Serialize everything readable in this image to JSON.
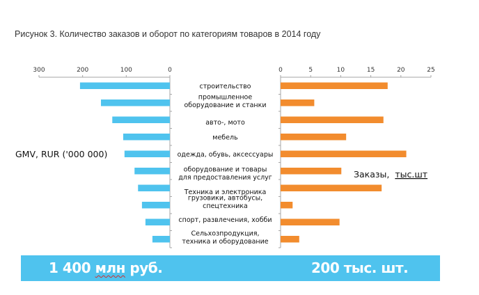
{
  "title": "Рисунок 3. Количество заказов и оборот по категориям товаров в 2014 году",
  "colors": {
    "gmv_bar": "#4FC3EE",
    "orders_bar": "#F28C2E",
    "banner": "#4FC3EE",
    "axis": "#A6A6A6"
  },
  "chart_data": [
    {
      "type": "bar",
      "orientation": "horizontal",
      "direction": "right-to-left",
      "series": [
        {
          "name": "GMV, RUR ('000 000)",
          "values": [
            206,
            158,
            132,
            107,
            104,
            81,
            73,
            64,
            56,
            40
          ]
        }
      ],
      "categories": [
        "строительство",
        "промышленное оборудование и станки",
        "авто-, мото",
        "мебель",
        "одежда, обувь, аксессуары",
        "оборудование и товары для предоставления услуг",
        "Техника и электроника",
        "грузовики, автобусы, спецтехника",
        "спорт, развлечения, хобби",
        "Сельхозпродукция, техника и оборудование"
      ],
      "xlim": [
        0,
        300
      ],
      "xticks": [
        "300",
        "200",
        "100",
        "0"
      ],
      "xtick_values": [
        300,
        200,
        100,
        0
      ],
      "annotation": "GMV,  RUR ('000 000)",
      "grid": false,
      "legend": "none"
    },
    {
      "type": "bar",
      "orientation": "horizontal",
      "direction": "left-to-right",
      "series": [
        {
          "name": "Заказы, тыс.шт",
          "values": [
            17.8,
            5.6,
            17.1,
            10.9,
            20.9,
            10.1,
            16.8,
            2.0,
            9.8,
            3.1
          ]
        }
      ],
      "categories": [
        "строительство",
        "промышленное оборудование и станки",
        "авто-, мото",
        "мебель",
        "одежда, обувь, аксессуары",
        "оборудование и товары для предоставления услуг",
        "Техника и электроника",
        "грузовики, автобусы, спецтехника",
        "спорт, развлечения, хобби",
        "Сельхозпродукция, техника и оборудование"
      ],
      "xlim": [
        0,
        25
      ],
      "xticks": [
        "0",
        "5",
        "10",
        "15",
        "20",
        "25"
      ],
      "xtick_values": [
        0,
        5,
        10,
        15,
        20,
        25
      ],
      "annotation_prefix": "Заказы,  ",
      "annotation_unit": "тыс.шт",
      "grid": false,
      "legend": "none"
    }
  ],
  "category_labels": [
    [
      "строительство"
    ],
    [
      "промышленное",
      "оборудование и станки"
    ],
    [
      "авто-, мото"
    ],
    [
      "мебель"
    ],
    [
      "одежда, обувь, аксессуары"
    ],
    [
      "оборудование и товары",
      "для предоставления услуг"
    ],
    [
      "Техника и электроника"
    ],
    [
      "грузовики, автобусы,",
      "спецтехника"
    ],
    [
      "спорт, развлечения, хобби"
    ],
    [
      "Сельхозпродукция,",
      "техника и оборудование"
    ]
  ],
  "banner": {
    "left_number": "1 400 ",
    "left_unit": "млн",
    "left_suffix": " руб.",
    "right_text": "200 тыс. шт."
  }
}
